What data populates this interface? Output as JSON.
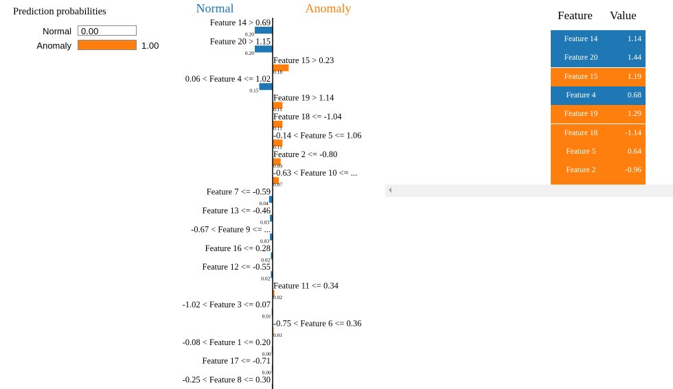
{
  "prediction": {
    "title": "Prediction probabilities",
    "rows": [
      {
        "label": "Normal",
        "value": 0.0,
        "text": "0.00",
        "color": "#1f77b4"
      },
      {
        "label": "Anomaly",
        "value": 1.0,
        "text": "1.00",
        "color": "#ff7f0e"
      }
    ]
  },
  "chart_data": {
    "type": "bar",
    "orientation": "horizontal",
    "class_labels": {
      "negative": "Normal",
      "positive": "Anomaly"
    },
    "colors": {
      "negative": "#1f77b4",
      "positive": "#ff7f0e"
    },
    "xlim": [
      -0.2,
      0.2
    ],
    "grid": false,
    "features": [
      {
        "label": "Feature 14 > 0.69",
        "value": -0.2,
        "text": "0.20"
      },
      {
        "label": "Feature 20 > 1.15",
        "value": -0.2,
        "text": "0.20"
      },
      {
        "label": "Feature 15 > 0.23",
        "value": 0.18,
        "text": "0.18"
      },
      {
        "label": "0.06 < Feature 4 <= 1.02",
        "value": -0.15,
        "text": "0.15"
      },
      {
        "label": "Feature 19 > 1.14",
        "value": 0.11,
        "text": "0.11"
      },
      {
        "label": "Feature 18 <= -1.04",
        "value": 0.11,
        "text": "0.11"
      },
      {
        "label": "-0.14 < Feature 5 <= 1.06",
        "value": 0.11,
        "text": "0.11"
      },
      {
        "label": "Feature 2 <= -0.80",
        "value": 0.09,
        "text": "0.09"
      },
      {
        "label": "-0.63 < Feature 10 <= ...",
        "value": 0.07,
        "text": "0.07"
      },
      {
        "label": "Feature 7 <= -0.59",
        "value": -0.04,
        "text": "0.04"
      },
      {
        "label": "Feature 13 <= -0.46",
        "value": -0.03,
        "text": "0.03"
      },
      {
        "label": "-0.67 < Feature 9 <= ...",
        "value": -0.03,
        "text": "0.03"
      },
      {
        "label": "Feature 16 <= 0.28",
        "value": -0.02,
        "text": "0.02"
      },
      {
        "label": "Feature 12 <= -0.55",
        "value": -0.02,
        "text": "0.02"
      },
      {
        "label": "Feature 11 <= 0.34",
        "value": 0.02,
        "text": "0.02"
      },
      {
        "label": "-1.02 < Feature 3 <= 0.07",
        "value": -0.01,
        "text": "0.01"
      },
      {
        "label": "-0.75 < Feature 6 <= 0.36",
        "value": 0.01,
        "text": "0.01"
      },
      {
        "label": "-0.08 < Feature 1 <= 0.20",
        "value": -0.003,
        "text": "0.00"
      },
      {
        "label": "Feature 17 <= -0.71",
        "value": -0.003,
        "text": "0.00"
      },
      {
        "label": "-0.25 < Feature 8 <= 0.30",
        "value": -0.003,
        "text": "0.00"
      }
    ]
  },
  "feature_table": {
    "headers": {
      "feature": "Feature",
      "value": "Value"
    },
    "rows": [
      {
        "feature": "Feature 14",
        "value": "1.14",
        "color": "#1f77b4"
      },
      {
        "feature": "Feature 20",
        "value": "1.44",
        "color": "#1f77b4"
      },
      {
        "feature": "Feature 15",
        "value": "1.19",
        "color": "#ff7f0e"
      },
      {
        "feature": "Feature 4",
        "value": "0.68",
        "color": "#1f77b4"
      },
      {
        "feature": "Feature 19",
        "value": "1.29",
        "color": "#ff7f0e"
      },
      {
        "feature": "Feature 18",
        "value": "-1.14",
        "color": "#ff7f0e"
      },
      {
        "feature": "Feature 5",
        "value": "0.64",
        "color": "#ff7f0e"
      },
      {
        "feature": "Feature 2",
        "value": "-0.96",
        "color": "#ff7f0e"
      }
    ]
  }
}
